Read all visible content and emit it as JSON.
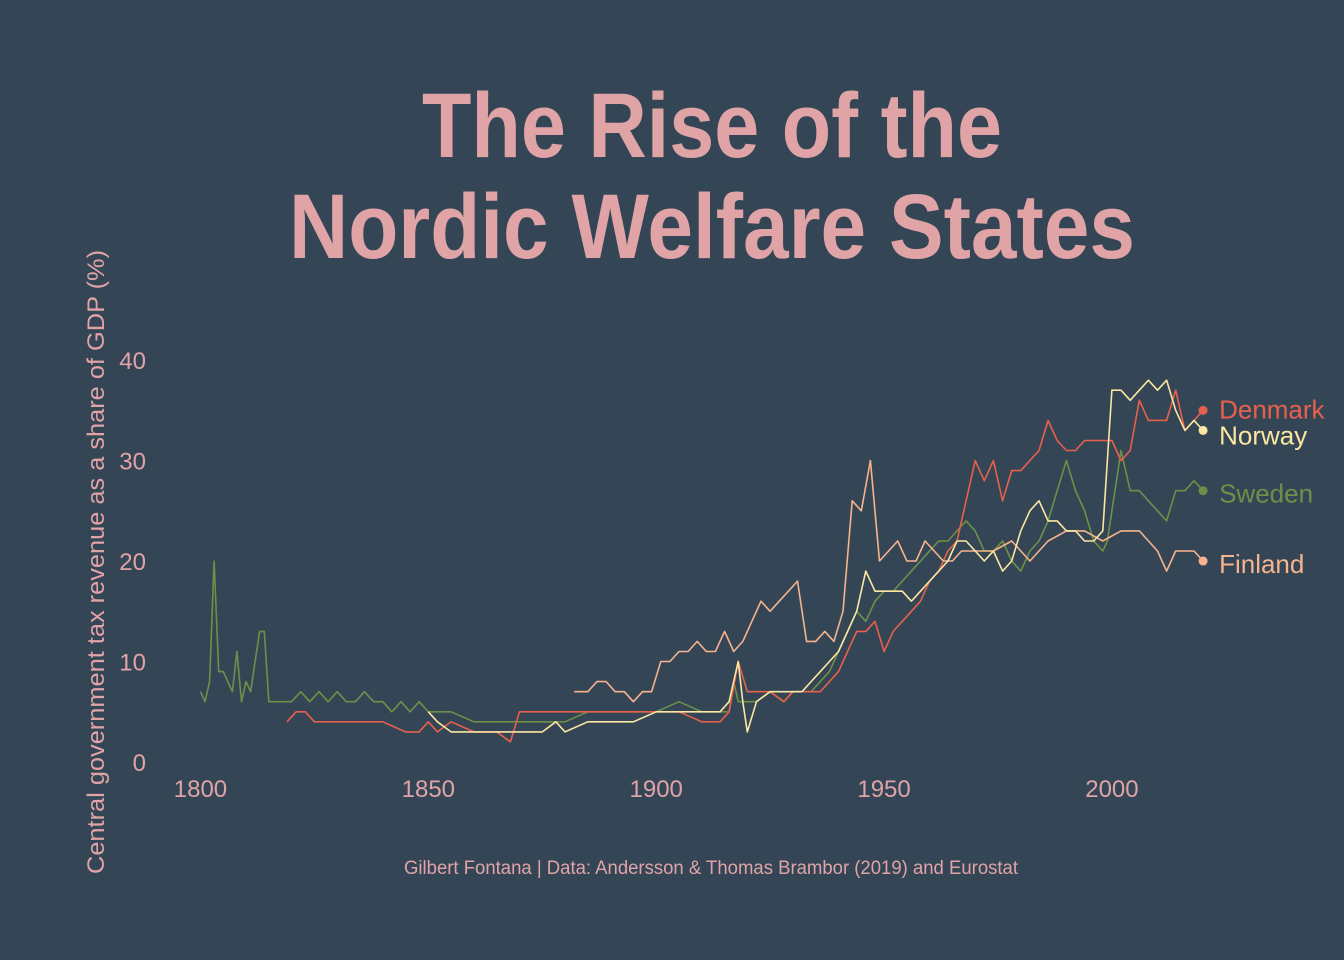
{
  "chart_data": {
    "type": "line",
    "title_lines": [
      "The Rise of the",
      "Nordic Welfare States"
    ],
    "ylabel": "Central government tax revenue as a share of GDP (%)",
    "caption": "Gilbert Fontana | Data: Andersson & Thomas Brambor (2019) and Eurostat",
    "xlim": [
      1792,
      2036
    ],
    "ylim": [
      0,
      42
    ],
    "x_ticks": [
      1800,
      1850,
      1900,
      1950,
      2000
    ],
    "y_ticks": [
      0,
      10,
      20,
      30,
      40
    ],
    "x_tick_labels": [
      "1800",
      "1850",
      "1900",
      "1950",
      "2000"
    ],
    "y_tick_labels": [
      "0",
      "10",
      "20",
      "30",
      "40"
    ],
    "grid": false,
    "legend": "direct labels at line ends",
    "colors": {
      "background": "#344656",
      "text": "#e0a3a6",
      "Denmark": "#e8604c",
      "Norway": "#fbe6a2",
      "Sweden": "#6d9048",
      "Finland": "#f6b38e"
    },
    "series": [
      {
        "name": "Sweden",
        "color": "#6d9048",
        "x": [
          1800,
          1801,
          1802,
          1803,
          1804,
          1805,
          1806,
          1807,
          1808,
          1809,
          1810,
          1811,
          1812,
          1813,
          1814,
          1815,
          1820,
          1822,
          1824,
          1826,
          1828,
          1830,
          1832,
          1834,
          1836,
          1838,
          1840,
          1842,
          1844,
          1846,
          1848,
          1850,
          1855,
          1860,
          1865,
          1870,
          1875,
          1880,
          1885,
          1890,
          1895,
          1900,
          1905,
          1910,
          1912,
          1914,
          1916,
          1917,
          1918,
          1920,
          1922,
          1925,
          1928,
          1930,
          1932,
          1934,
          1936,
          1938,
          1940,
          1942,
          1944,
          1946,
          1948,
          1950,
          1952,
          1954,
          1956,
          1958,
          1960,
          1962,
          1964,
          1966,
          1968,
          1970,
          1972,
          1974,
          1976,
          1978,
          1980,
          1982,
          1984,
          1986,
          1988,
          1990,
          1992,
          1994,
          1996,
          1998,
          1999,
          2000,
          2002,
          2004,
          2006,
          2008,
          2010,
          2012,
          2014,
          2016,
          2018,
          2020
        ],
        "values": [
          7,
          6,
          8,
          20,
          9,
          9,
          8,
          7,
          11,
          6,
          8,
          7,
          10,
          13,
          13,
          6,
          6,
          7,
          6,
          7,
          6,
          7,
          6,
          6,
          7,
          6,
          6,
          5,
          6,
          5,
          6,
          5,
          5,
          4,
          4,
          4,
          4,
          4,
          5,
          5,
          5,
          5,
          6,
          5,
          5,
          5,
          5,
          8,
          6,
          6,
          6,
          7,
          6,
          7,
          7,
          7,
          8,
          9,
          11,
          13,
          15,
          14,
          16,
          17,
          17,
          18,
          19,
          20,
          21,
          22,
          22,
          23,
          24,
          23,
          21,
          21,
          22,
          20,
          19,
          21,
          22,
          24,
          27,
          30,
          27,
          25,
          22,
          21,
          22,
          25,
          31,
          27,
          27,
          26,
          25,
          24,
          27,
          27,
          28,
          27
        ]
      },
      {
        "name": "Denmark",
        "color": "#e8604c",
        "x": [
          1819,
          1821,
          1823,
          1825,
          1830,
          1835,
          1840,
          1845,
          1848,
          1850,
          1852,
          1855,
          1860,
          1865,
          1868,
          1870,
          1875,
          1880,
          1885,
          1890,
          1895,
          1900,
          1905,
          1910,
          1914,
          1916,
          1918,
          1920,
          1922,
          1925,
          1928,
          1930,
          1932,
          1934,
          1936,
          1938,
          1940,
          1942,
          1944,
          1946,
          1948,
          1950,
          1952,
          1954,
          1956,
          1958,
          1960,
          1962,
          1964,
          1966,
          1968,
          1970,
          1972,
          1974,
          1976,
          1978,
          1980,
          1982,
          1984,
          1986,
          1988,
          1990,
          1992,
          1994,
          1996,
          1998,
          2000,
          2002,
          2004,
          2006,
          2008,
          2010,
          2012,
          2014,
          2016,
          2018,
          2020
        ],
        "values": [
          4,
          5,
          5,
          4,
          4,
          4,
          4,
          3,
          3,
          4,
          3,
          4,
          3,
          3,
          2,
          5,
          5,
          5,
          5,
          5,
          5,
          5,
          5,
          4,
          4,
          5,
          10,
          7,
          7,
          7,
          6,
          7,
          7,
          7,
          7,
          8,
          9,
          11,
          13,
          13,
          14,
          11,
          13,
          14,
          15,
          16,
          18,
          19,
          21,
          22,
          26,
          30,
          28,
          30,
          26,
          29,
          29,
          30,
          31,
          34,
          32,
          31,
          31,
          32,
          32,
          32,
          32,
          30,
          31,
          36,
          34,
          34,
          34,
          37,
          33,
          34,
          35
        ]
      },
      {
        "name": "Finland",
        "color": "#f6b38e",
        "x": [
          1882,
          1885,
          1887,
          1889,
          1891,
          1893,
          1895,
          1897,
          1899,
          1901,
          1903,
          1905,
          1907,
          1909,
          1911,
          1913,
          1915,
          1917,
          1919,
          1921,
          1923,
          1925,
          1927,
          1929,
          1931,
          1933,
          1935,
          1937,
          1939,
          1941,
          1943,
          1945,
          1947,
          1949,
          1951,
          1953,
          1955,
          1957,
          1959,
          1961,
          1963,
          1965,
          1967,
          1970,
          1974,
          1978,
          1982,
          1986,
          1990,
          1994,
          1998,
          2002,
          2006,
          2010,
          2012,
          2014,
          2016,
          2018,
          2020
        ],
        "values": [
          7,
          7,
          8,
          8,
          7,
          7,
          6,
          7,
          7,
          10,
          10,
          11,
          11,
          12,
          11,
          11,
          13,
          11,
          12,
          14,
          16,
          15,
          16,
          17,
          18,
          12,
          12,
          13,
          12,
          15,
          26,
          25,
          30,
          20,
          21,
          22,
          20,
          20,
          22,
          21,
          20,
          20,
          21,
          21,
          21,
          22,
          20,
          22,
          23,
          23,
          22,
          23,
          23,
          21,
          19,
          21,
          21,
          21,
          20
        ]
      },
      {
        "name": "Norway",
        "color": "#fbe6a2",
        "x": [
          1850,
          1852,
          1855,
          1860,
          1865,
          1870,
          1875,
          1878,
          1880,
          1885,
          1890,
          1895,
          1900,
          1905,
          1910,
          1914,
          1916,
          1918,
          1919,
          1920,
          1922,
          1925,
          1928,
          1930,
          1932,
          1934,
          1936,
          1938,
          1940,
          1942,
          1944,
          1946,
          1948,
          1950,
          1952,
          1954,
          1956,
          1958,
          1960,
          1962,
          1964,
          1966,
          1968,
          1970,
          1972,
          1974,
          1976,
          1978,
          1980,
          1982,
          1984,
          1986,
          1988,
          1990,
          1992,
          1994,
          1996,
          1998,
          2000,
          2002,
          2004,
          2006,
          2008,
          2010,
          2012,
          2014,
          2016,
          2018,
          2020
        ],
        "values": [
          5,
          4,
          3,
          3,
          3,
          3,
          3,
          4,
          3,
          4,
          4,
          4,
          5,
          5,
          5,
          5,
          6,
          10,
          6,
          3,
          6,
          7,
          7,
          7,
          7,
          8,
          9,
          10,
          11,
          13,
          15,
          19,
          17,
          17,
          17,
          17,
          16,
          17,
          18,
          19,
          20,
          22,
          22,
          21,
          20,
          21,
          19,
          20,
          23,
          25,
          26,
          24,
          24,
          23,
          23,
          22,
          22,
          23,
          37,
          37,
          36,
          37,
          38,
          37,
          38,
          35,
          33,
          34,
          33
        ]
      }
    ]
  }
}
